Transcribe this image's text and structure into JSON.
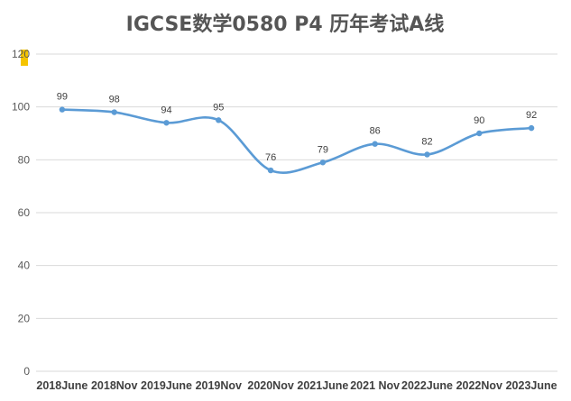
{
  "chart_data": {
    "type": "line",
    "title": "IGCSE数学0580 P4 历年考试A线",
    "categories": [
      "2018June",
      "2018Nov",
      "2019June",
      "2019Nov",
      "2020Nov",
      "2021June",
      "2021 Nov",
      "2022June",
      "2022Nov",
      "2023June"
    ],
    "series": [
      {
        "values": [
          99,
          98,
          94,
          95,
          76,
          79,
          86,
          82,
          90,
          92
        ]
      }
    ],
    "ylim": [
      0,
      120
    ],
    "yticks": [
      0,
      20,
      40,
      60,
      80,
      100,
      120
    ],
    "grid": true,
    "line_style": "smooth",
    "data_labels": true,
    "colors": {
      "line": "#5b9bd5",
      "marker": "#5b9bd5",
      "grid": "#d9d9d9",
      "accent_tag": "#f5c400"
    }
  }
}
